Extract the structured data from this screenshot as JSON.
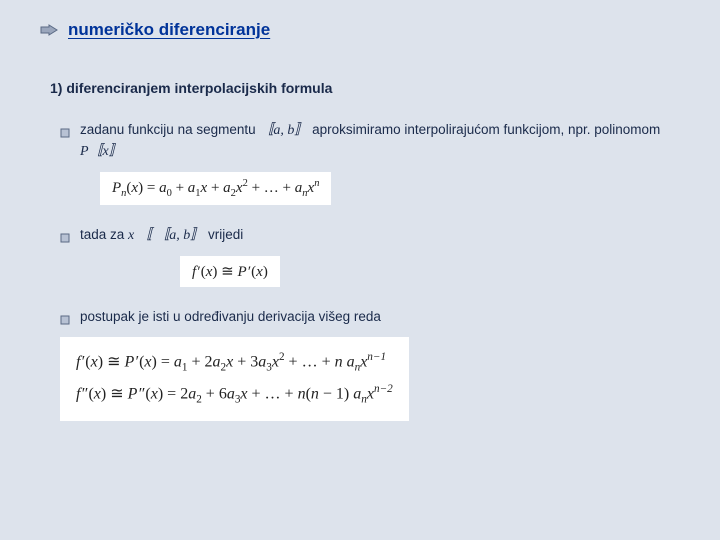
{
  "colors": {
    "page_bg": "#dde3ec",
    "title_color": "#003399",
    "body_color": "#1a2a4a",
    "formula_bg": "#ffffff",
    "formula_color": "#222222",
    "bullet_stroke": "#5a6a85",
    "bullet_fill": "#b8c2d4",
    "arrow_stroke": "#5a6a85",
    "arrow_fill": "#9aa6bc"
  },
  "title": "numeričko diferenciranje",
  "subhead": "1) diferenciranjem interpolacijskih formula",
  "items": {
    "b1_pre": "zadanu funkciju na segmentu ",
    "b1_seg": "〚a, b〛",
    "b1_mid": " aproksimiramo interpolirajućom funkcijom, npr. polinomom ",
    "b1_poly": "P〚x〛",
    "b2_pre": "tada za ",
    "b2_cond": "x 〚 〚a, b〛",
    "b2_post": " vrijedi",
    "b3": "postupak je isti u određivanju derivacija višeg reda"
  },
  "formulas": {
    "poly_html": "<span class='it'>P</span><span class='sub it'>n</span>(<span class='it'>x</span>) = <span class='it'>a</span><span class='sub'>0</span> + <span class='it'>a</span><span class='sub'>1</span><span class='it'>x</span> + <span class='it'>a</span><span class='sub'>2</span><span class='it'>x</span><span class='sup'>2</span> + … + <span class='it'>a</span><span class='sub it'>n</span><span class='it'>x</span><span class='sup it'>n</span>",
    "approx_html": "<span class='it'>f</span>&#8202;′(<span class='it'>x</span>) ≅ <span class='it'>P</span>&#8202;′(<span class='it'>x</span>)",
    "deriv1_html": "<span class='it'>f</span>&#8202;′(<span class='it'>x</span>) ≅ <span class='it'>P</span>&#8202;′(<span class='it'>x</span>) = <span class='it'>a</span><span class='sub'>1</span> + 2<span class='it'>a</span><span class='sub'>2</span><span class='it'>x</span> + 3<span class='it'>a</span><span class='sub'>3</span><span class='it'>x</span><span class='sup'>2</span> + … + <span class='it'>n a</span><span class='sub it'>n</span><span class='it'>x</span><span class='sup it'>n−1</span>",
    "deriv2_html": "<span class='it'>f</span>&#8202;″(<span class='it'>x</span>) ≅ <span class='it'>P</span>&#8202;″(<span class='it'>x</span>) = 2<span class='it'>a</span><span class='sub'>2</span> + 6<span class='it'>a</span><span class='sub'>3</span><span class='it'>x</span> + … + <span class='it'>n</span>(<span class='it'>n</span> − 1) <span class='it'>a</span><span class='sub it'>n</span><span class='it'>x</span><span class='sup it'>n−2</span>"
  }
}
